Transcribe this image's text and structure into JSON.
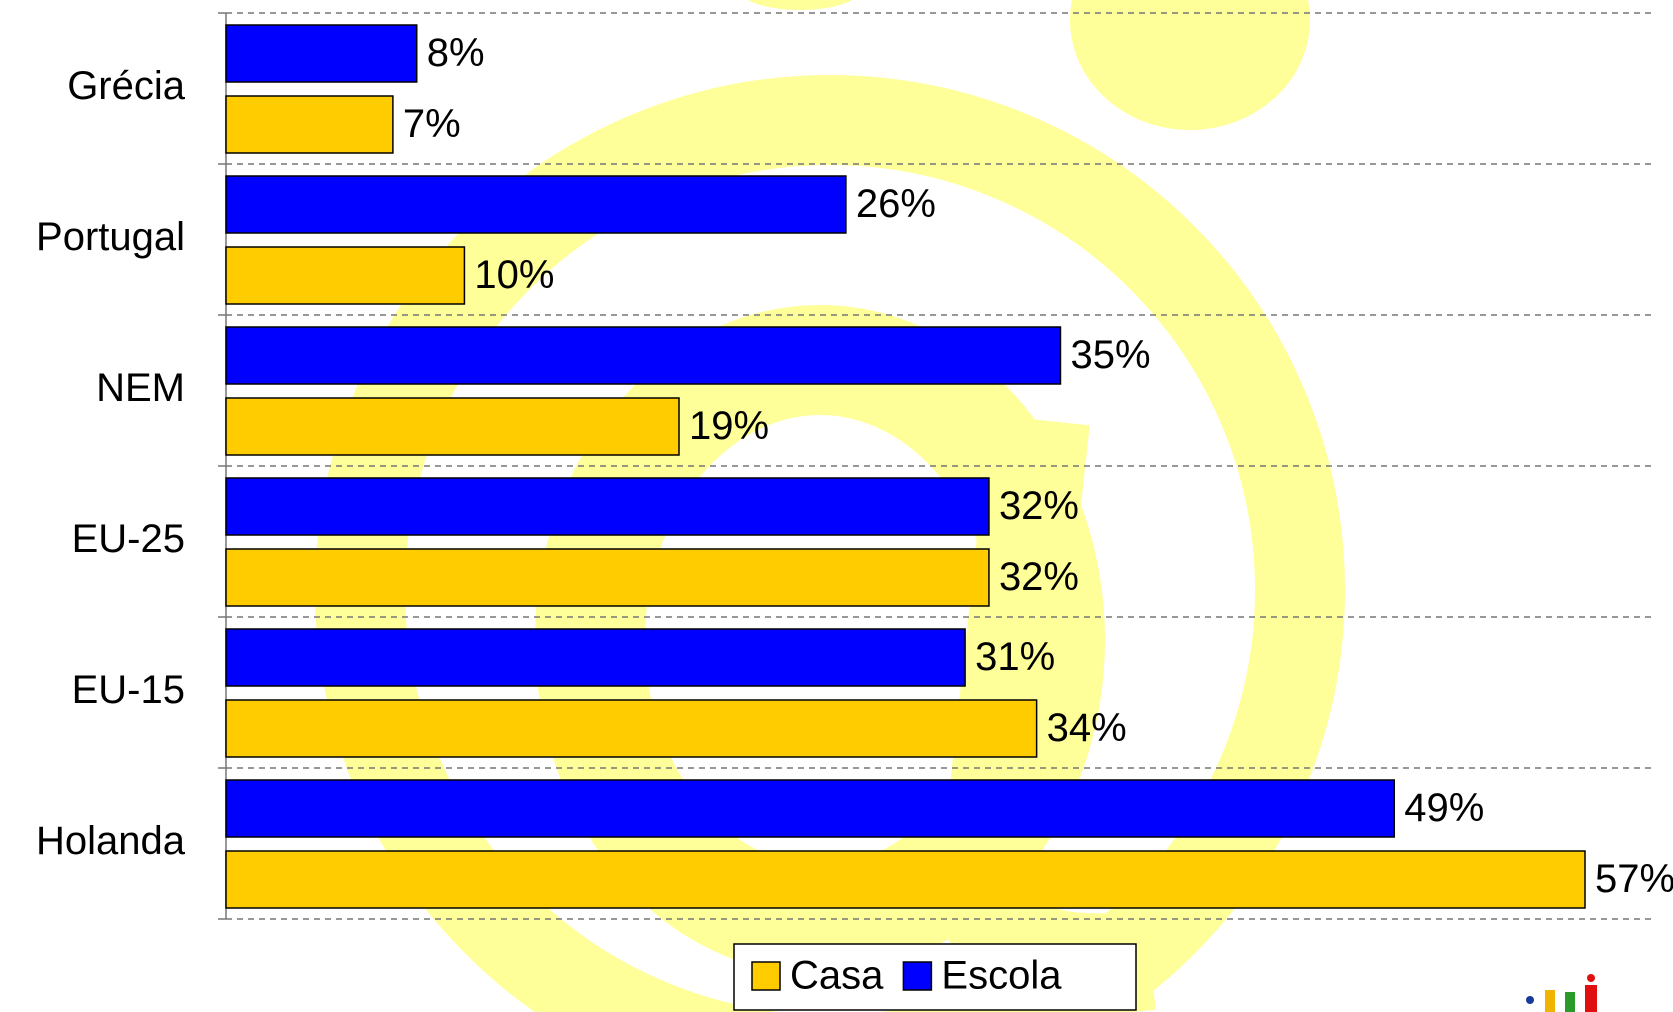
{
  "chart_data": {
    "type": "hbar",
    "categories": [
      "Grécia",
      "Portugal",
      "NEM",
      "EU-25",
      "EU-15",
      "Holanda"
    ],
    "series": [
      {
        "name": "Casa",
        "color": "#ffcc00",
        "values": [
          7,
          10,
          19,
          32,
          34,
          57
        ],
        "value_labels": [
          "7%",
          "10%",
          "19%",
          "32%",
          "34%",
          "57%"
        ]
      },
      {
        "name": "Escola",
        "color": "#0000ff",
        "values": [
          8,
          26,
          35,
          32,
          31,
          49
        ],
        "value_labels": [
          "8%",
          "26%",
          "35%",
          "32%",
          "31%",
          "49%"
        ]
      }
    ]
  }
}
